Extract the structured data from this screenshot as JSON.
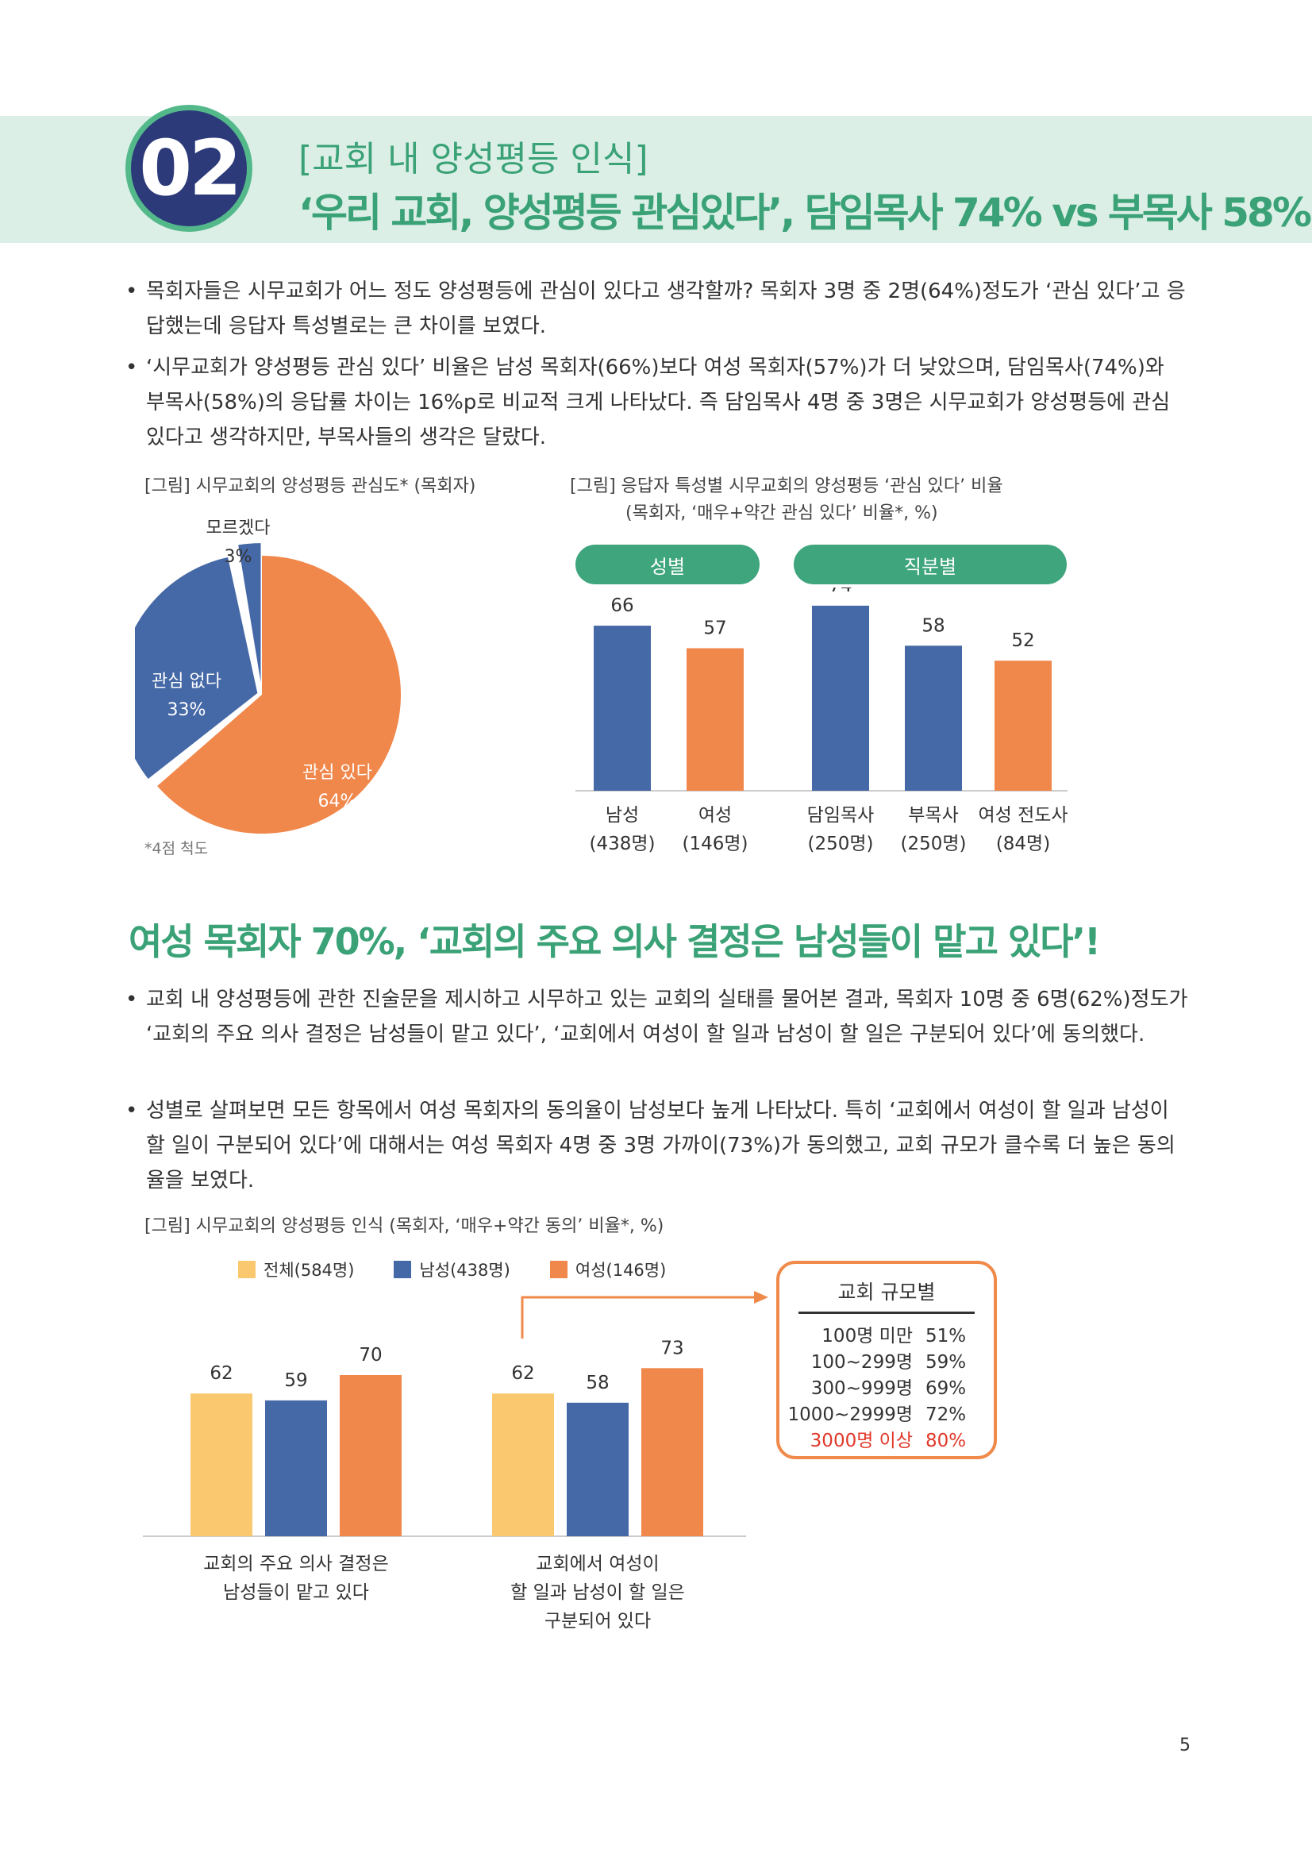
{
  "header": {
    "number": "02",
    "kicker": "[교회 내 양성평등 인식]",
    "title": "‘우리 교회, 양성평등 관심있다’, 담임목사 74% vs 부목사 58%!"
  },
  "section1": {
    "bullets": [
      "목회자들은 시무교회가 어느 정도 양성평등에 관심이 있다고 생각할까? 목회자 3명 중 2명(64%)정도가 ‘관심 있다’고 응답했는데 응답자 특성별로는 큰 차이를 보였다.",
      "‘시무교회가 양성평등 관심 있다’ 비율은 남성 목회자(66%)보다 여성 목회자(57%)가 더 낮았으며, 담임목사(74%)와 부목사(58%)의 응답률 차이는 16%p로 비교적 크게 나타났다. 즉 담임목사 4명 중 3명은 시무교회가 양성평등에 관심 있다고 생각하지만, 부목사들의 생각은 달랐다."
    ]
  },
  "pie": {
    "caption": "[그림] 시무교회의 양성평등 관심도* (목회자)",
    "footnote": "*4점 척도"
  },
  "bars1": {
    "caption_line1": "[그림] 응답자 특성별 시무교회의 양성평등 ‘관심 있다’ 비율",
    "caption_line2": "(목회자, ‘매우+약간 관심 있다’ 비율*, %)",
    "group1_label": "성별",
    "group2_label": "직분별"
  },
  "section2": {
    "heading": "여성 목회자 70%, ‘교회의 주요 의사 결정은 남성들이 맡고 있다’!",
    "bullets": [
      "교회 내 양성평등에 관한 진술문을 제시하고 시무하고 있는 교회의 실태를 물어본 결과, 목회자 10명 중 6명(62%)정도가 ‘교회의 주요 의사 결정은 남성들이 맡고 있다’, ‘교회에서 여성이 할 일과 남성이 할 일은 구분되어 있다’에 동의했다.",
      "성별로 살펴보면 모든 항목에서 여성 목회자의 동의율이 남성보다 높게 나타났다. 특히 ‘교회에서 여성이 할 일과 남성이 할 일이 구분되어 있다’에 대해서는 여성 목회자 4명 중 3명 가까이(73%)가 동의했고, 교회 규모가 클수록 더 높은 동의율을 보였다."
    ]
  },
  "bars2": {
    "caption": "[그림] 시무교회의 양성평등 인식 (목회자, ‘매우+약간 동의’ 비율*, %)"
  },
  "size_box": {
    "title": "교회 규모별",
    "rows": [
      {
        "label": "100명 미만",
        "value": "51%"
      },
      {
        "label": "100~299명",
        "value": "59%"
      },
      {
        "label": "300~999명",
        "value": "69%"
      },
      {
        "label": "1000~2999명",
        "value": "72%"
      },
      {
        "label": "3000명 이상",
        "value": "80%"
      }
    ]
  },
  "page_number": "5",
  "chart_data": [
    {
      "type": "pie",
      "title": "시무교회의 양성평등 관심도 (목회자)",
      "slices": [
        {
          "name": "관심 있다",
          "value": 64,
          "label": "64%",
          "color": "#f0874b"
        },
        {
          "name": "관심 없다",
          "value": 33,
          "label": "33%",
          "color": "#4568a6"
        },
        {
          "name": "모르겠다",
          "value": 3,
          "label": "3%",
          "color": "#4568a6"
        }
      ]
    },
    {
      "type": "bar",
      "title": "응답자 특성별 시무교회의 양성평등 ‘관심 있다’ 비율",
      "ylim": [
        0,
        100
      ],
      "categories": [
        {
          "name": "남성",
          "n": "(438명)",
          "value": 66,
          "color": "#4568a6"
        },
        {
          "name": "여성",
          "n": "(146명)",
          "value": 57,
          "color": "#f0874b"
        },
        {
          "name": "담임목사",
          "n": "(250명)",
          "value": 74,
          "color": "#4568a6"
        },
        {
          "name": "부목사",
          "n": "(250명)",
          "value": 58,
          "color": "#4568a6"
        },
        {
          "name": "여성 전도사",
          "n": "(84명)",
          "value": 52,
          "color": "#f0874b"
        }
      ]
    },
    {
      "type": "bar",
      "title": "시무교회의 양성평등 인식",
      "ylim": [
        0,
        100
      ],
      "categories": [
        {
          "lines": [
            "교회의 주요 의사 결정은",
            "남성들이 맡고 있다"
          ]
        },
        {
          "lines": [
            "교회에서 여성이",
            "할 일과 남성이 할 일은",
            "구분되어 있다"
          ]
        }
      ],
      "series": [
        {
          "name": "전체(584명)",
          "color": "#fac96f",
          "values": [
            62,
            62
          ]
        },
        {
          "name": "남성(438명)",
          "color": "#4568a6",
          "values": [
            59,
            58
          ]
        },
        {
          "name": "여성(146명)",
          "color": "#f0874b",
          "values": [
            70,
            73
          ]
        }
      ]
    }
  ]
}
